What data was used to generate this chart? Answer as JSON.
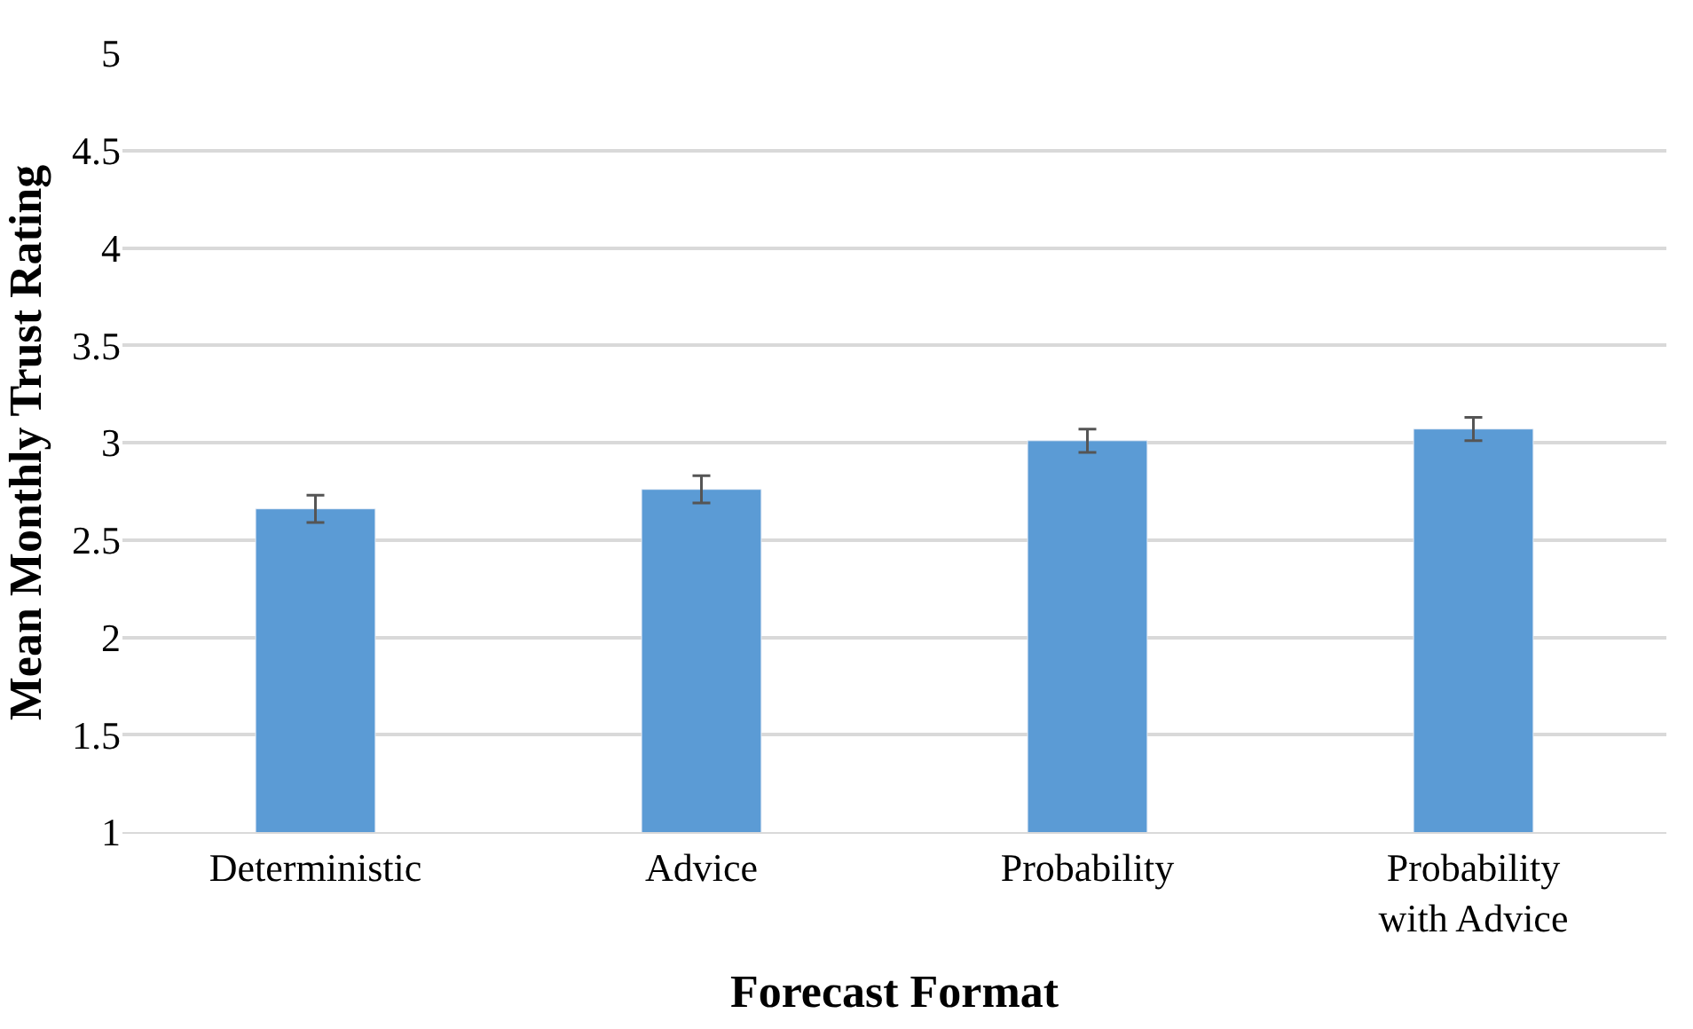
{
  "chart_data": {
    "type": "bar",
    "xlabel": "Forecast Format",
    "ylabel": "Mean Monthly Trust Rating",
    "categories": [
      "Deterministic",
      "Advice",
      "Probability",
      "Probability\nwith Advice"
    ],
    "values": [
      2.66,
      2.76,
      3.01,
      3.07
    ],
    "errors": [
      0.07,
      0.07,
      0.06,
      0.06
    ],
    "color": "#5b9bd5",
    "ylim": [
      1,
      5
    ],
    "yticks": [
      1,
      1.5,
      2,
      2.5,
      3,
      3.5,
      4,
      4.5,
      5
    ],
    "grid": "y"
  }
}
